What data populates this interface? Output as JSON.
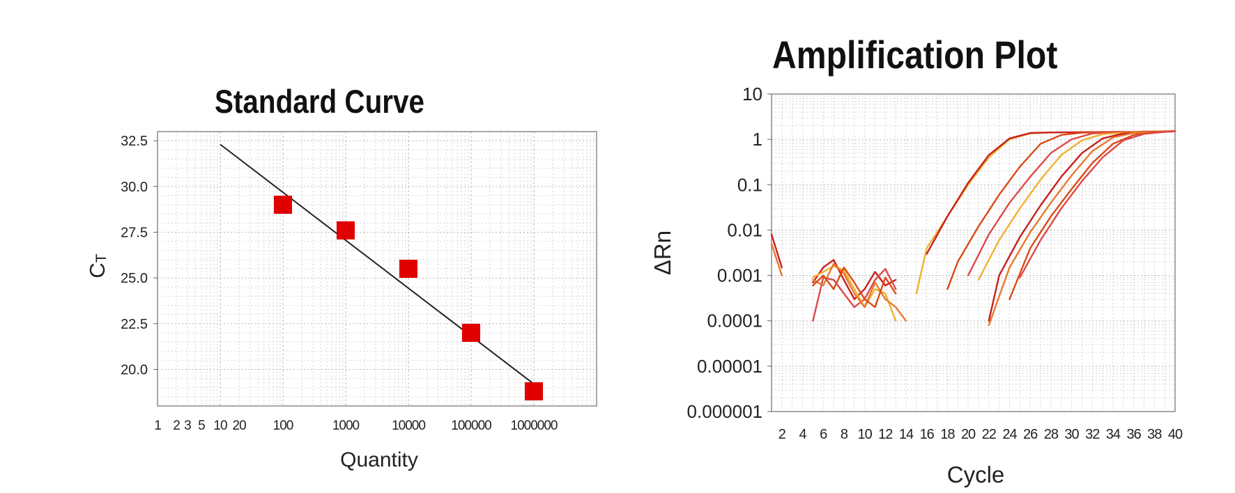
{
  "chart_data": [
    {
      "type": "scatter",
      "title": "Standard Curve",
      "xlabel": "Quantity",
      "ylabel": "CT",
      "xscale": "log",
      "xlim": [
        1,
        10000000
      ],
      "ylim": [
        18,
        33
      ],
      "grid": true,
      "x_tick_labels": [
        "1",
        "2",
        "3",
        "5",
        "10",
        "20",
        "100",
        "1000",
        "10000",
        "100000",
        "1000000"
      ],
      "y_tick_labels": [
        "32.5",
        "30.0",
        "27.5",
        "25.0",
        "22.5",
        "20.0"
      ],
      "points": [
        {
          "x": 100,
          "y": 29.0
        },
        {
          "x": 1000,
          "y": 27.6
        },
        {
          "x": 10000,
          "y": 25.5
        },
        {
          "x": 100000,
          "y": 22.0
        },
        {
          "x": 1000000,
          "y": 18.8
        }
      ],
      "fit_line": {
        "x": [
          10,
          1000000
        ],
        "y": [
          32.3,
          19.2
        ]
      },
      "marker_color": "#e00000",
      "line_color": "#222222"
    },
    {
      "type": "line",
      "title": "Amplification Plot",
      "xlabel": "Cycle",
      "ylabel": "ΔRn",
      "yscale": "log",
      "xlim": [
        1,
        40
      ],
      "ylim": [
        1e-06,
        10
      ],
      "grid": true,
      "x_tick_labels": [
        "2",
        "4",
        "6",
        "8",
        "10",
        "12",
        "14",
        "16",
        "18",
        "20",
        "22",
        "24",
        "26",
        "28",
        "30",
        "32",
        "34",
        "36",
        "38",
        "40"
      ],
      "y_tick_labels": [
        "10",
        "1",
        "0.1",
        "0.01",
        "0.001",
        "0.0001",
        "0.00001",
        "0.000001"
      ],
      "colors": [
        "#c81e1e",
        "#d94a14",
        "#e8782a",
        "#f0b030",
        "#e04848"
      ],
      "series": [
        {
          "color": "#c81e1e",
          "points": [
            [
              1,
              0.008
            ],
            [
              2,
              0.0015
            ]
          ]
        },
        {
          "color": "#e8782a",
          "points": [
            [
              1,
              0.005
            ],
            [
              2,
              0.001
            ]
          ]
        },
        {
          "color": "#c81e1e",
          "points": [
            [
              5,
              0.0007
            ],
            [
              6,
              0.0015
            ],
            [
              7,
              0.0022
            ],
            [
              8,
              0.0008
            ],
            [
              9,
              0.0003
            ],
            [
              10,
              0.0005
            ],
            [
              11,
              0.0012
            ],
            [
              12,
              0.0006
            ],
            [
              13,
              0.0008
            ]
          ]
        },
        {
          "color": "#e04848",
          "points": [
            [
              5,
              0.0001
            ],
            [
              6,
              0.0009
            ],
            [
              7,
              0.0008
            ],
            [
              8,
              0.0004
            ],
            [
              9,
              0.0002
            ],
            [
              10,
              0.0003
            ],
            [
              11,
              0.0008
            ],
            [
              12,
              0.0014
            ],
            [
              13,
              0.0005
            ]
          ]
        },
        {
          "color": "#f0b030",
          "points": [
            [
              5,
              0.0009
            ],
            [
              6,
              0.0012
            ],
            [
              7,
              0.0016
            ],
            [
              8,
              0.0013
            ],
            [
              9,
              0.0005
            ],
            [
              10,
              0.0002
            ],
            [
              11,
              0.0005
            ],
            [
              12,
              0.0004
            ],
            [
              13,
              0.0001
            ]
          ]
        },
        {
          "color": "#e8782a",
          "points": [
            [
              5,
              0.0008
            ],
            [
              6,
              0.0006
            ],
            [
              7,
              0.0018
            ],
            [
              8,
              0.0011
            ],
            [
              9,
              0.0004
            ],
            [
              10,
              0.0002
            ],
            [
              11,
              0.0007
            ],
            [
              12,
              0.0003
            ],
            [
              13,
              0.0002
            ],
            [
              14,
              0.0001
            ]
          ]
        },
        {
          "color": "#d94a14",
          "points": [
            [
              5,
              0.0006
            ],
            [
              6,
              0.001
            ],
            [
              7,
              0.0005
            ],
            [
              8,
              0.0015
            ],
            [
              9,
              0.0007
            ],
            [
              10,
              0.0003
            ],
            [
              11,
              0.0002
            ],
            [
              12,
              0.0009
            ],
            [
              13,
              0.0004
            ]
          ]
        },
        {
          "color": "#f0b030",
          "points": [
            [
              15,
              0.0004
            ],
            [
              16,
              0.004
            ],
            [
              18,
              0.02
            ],
            [
              20,
              0.1
            ],
            [
              22,
              0.4
            ],
            [
              24,
              1.0
            ],
            [
              26,
              1.35
            ],
            [
              28,
              1.42
            ],
            [
              30,
              1.42
            ],
            [
              34,
              1.45
            ],
            [
              40,
              1.5
            ]
          ]
        },
        {
          "color": "#c81e1e",
          "points": [
            [
              16,
              0.003
            ],
            [
              18,
              0.02
            ],
            [
              20,
              0.11
            ],
            [
              22,
              0.45
            ],
            [
              24,
              1.05
            ],
            [
              26,
              1.38
            ],
            [
              28,
              1.42
            ],
            [
              30,
              1.43
            ],
            [
              34,
              1.46
            ],
            [
              40,
              1.5
            ]
          ]
        },
        {
          "color": "#d94a14",
          "points": [
            [
              18,
              0.0005
            ],
            [
              19,
              0.002
            ],
            [
              21,
              0.012
            ],
            [
              23,
              0.06
            ],
            [
              25,
              0.25
            ],
            [
              27,
              0.8
            ],
            [
              29,
              1.25
            ],
            [
              31,
              1.4
            ],
            [
              34,
              1.45
            ],
            [
              40,
              1.5
            ]
          ]
        },
        {
          "color": "#e04848",
          "points": [
            [
              20,
              0.001
            ],
            [
              22,
              0.008
            ],
            [
              24,
              0.04
            ],
            [
              26,
              0.15
            ],
            [
              28,
              0.5
            ],
            [
              30,
              1.0
            ],
            [
              32,
              1.35
            ],
            [
              35,
              1.45
            ],
            [
              40,
              1.52
            ]
          ]
        },
        {
          "color": "#f0b030",
          "points": [
            [
              21,
              0.0008
            ],
            [
              23,
              0.006
            ],
            [
              25,
              0.03
            ],
            [
              27,
              0.13
            ],
            [
              29,
              0.45
            ],
            [
              31,
              0.95
            ],
            [
              33,
              1.3
            ],
            [
              36,
              1.45
            ],
            [
              40,
              1.52
            ]
          ]
        },
        {
          "color": "#c81e1e",
          "points": [
            [
              22,
              0.0001
            ],
            [
              23,
              0.001
            ],
            [
              25,
              0.007
            ],
            [
              27,
              0.035
            ],
            [
              29,
              0.15
            ],
            [
              31,
              0.5
            ],
            [
              33,
              1.05
            ],
            [
              35,
              1.35
            ],
            [
              37,
              1.45
            ],
            [
              40,
              1.52
            ]
          ]
        },
        {
          "color": "#e8782a",
          "points": [
            [
              22,
              8e-05
            ],
            [
              24,
              0.0015
            ],
            [
              26,
              0.009
            ],
            [
              28,
              0.04
            ],
            [
              30,
              0.16
            ],
            [
              32,
              0.55
            ],
            [
              34,
              1.1
            ],
            [
              36,
              1.38
            ],
            [
              38,
              1.46
            ],
            [
              40,
              1.5
            ]
          ]
        },
        {
          "color": "#d94a14",
          "points": [
            [
              24,
              0.0003
            ],
            [
              26,
              0.004
            ],
            [
              28,
              0.02
            ],
            [
              30,
              0.08
            ],
            [
              32,
              0.3
            ],
            [
              34,
              0.8
            ],
            [
              36,
              1.25
            ],
            [
              38,
              1.43
            ],
            [
              40,
              1.5
            ]
          ]
        },
        {
          "color": "#e04848",
          "points": [
            [
              25,
              0.0009
            ],
            [
              27,
              0.006
            ],
            [
              29,
              0.03
            ],
            [
              31,
              0.12
            ],
            [
              33,
              0.4
            ],
            [
              35,
              0.95
            ],
            [
              37,
              1.32
            ],
            [
              39,
              1.46
            ],
            [
              40,
              1.5
            ]
          ]
        }
      ]
    }
  ]
}
